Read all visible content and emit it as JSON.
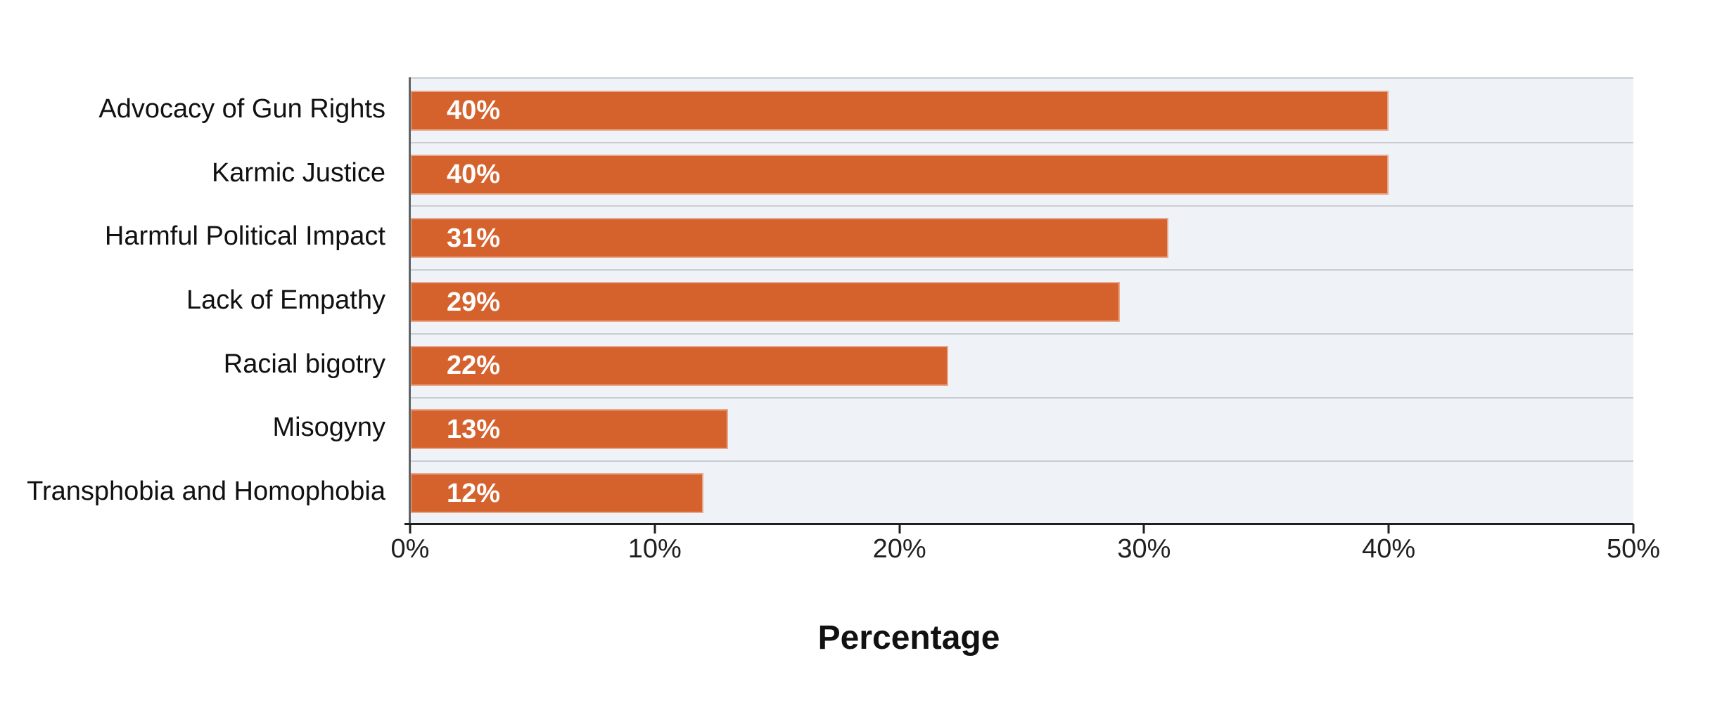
{
  "chart_data": {
    "type": "bar",
    "orientation": "horizontal",
    "title": "",
    "xlabel": "Percentage",
    "ylabel": "",
    "categories": [
      "Advocacy of Gun Rights",
      "Karmic Justice",
      "Harmful Political Impact",
      "Lack of Empathy",
      "Racial bigotry",
      "Misogyny",
      "Transphobia and Homophobia"
    ],
    "values": [
      40,
      40,
      31,
      29,
      22,
      13,
      12
    ],
    "value_labels": [
      "40%",
      "40%",
      "31%",
      "29%",
      "22%",
      "13%",
      "12%"
    ],
    "x_tick_values": [
      0,
      10,
      20,
      30,
      40,
      50
    ],
    "x_tick_labels": [
      "0%",
      "10%",
      "20%",
      "30%",
      "40%",
      "50%"
    ],
    "xlim": [
      0,
      50
    ],
    "grid": "horizontal-category-separators",
    "legend_position": "none"
  },
  "colors": {
    "bar": "#d5622d",
    "bar_value_text": "#ffffff",
    "plot_background": "#eff3f8",
    "gridline": "#c9cdd2",
    "left_spine": "#5f6367",
    "bottom_axis": "#1f1f1f",
    "text": "#111111"
  }
}
